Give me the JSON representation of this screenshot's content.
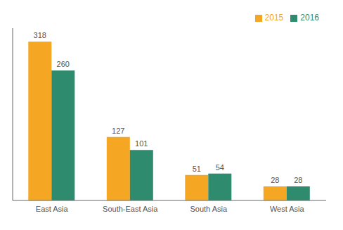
{
  "chart_data": {
    "type": "bar",
    "categories": [
      "East Asia",
      "South-East Asia",
      "South Asia",
      "West Asia"
    ],
    "series": [
      {
        "name": "2015",
        "color": "#F5A623",
        "values": [
          318,
          127,
          51,
          28
        ]
      },
      {
        "name": "2016",
        "color": "#2E8B6E",
        "values": [
          260,
          101,
          54,
          28
        ]
      }
    ],
    "ylim": [
      0,
      345
    ],
    "data_labels": true,
    "legend": "upper right",
    "tick_labels": "x",
    "grid": false
  }
}
